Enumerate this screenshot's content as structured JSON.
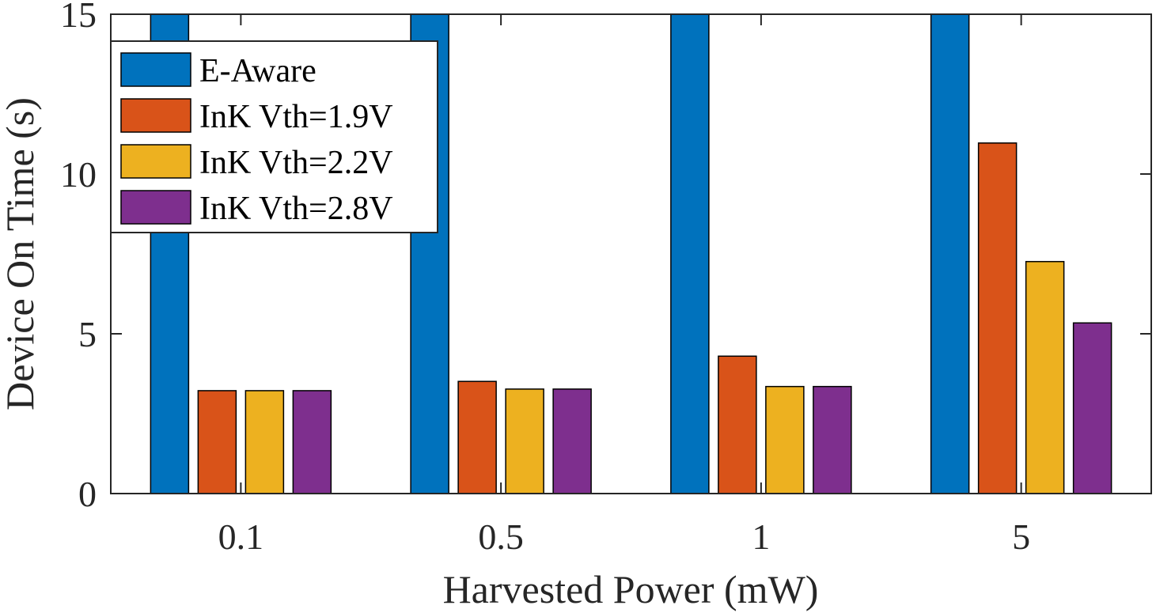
{
  "chart_data": {
    "type": "bar",
    "categories": [
      "0.1",
      "0.5",
      "1",
      "5"
    ],
    "series": [
      {
        "name": "E-Aware",
        "color": "#0072BD",
        "values": [
          15,
          15,
          15,
          15
        ]
      },
      {
        "name": "InK Vth=1.9V",
        "color": "#D95319",
        "values": [
          3.22,
          3.51,
          4.3,
          10.97
        ]
      },
      {
        "name": "InK Vth=2.2V",
        "color": "#EDB120",
        "values": [
          3.22,
          3.27,
          3.35,
          7.26
        ]
      },
      {
        "name": "InK Vth=2.8V",
        "color": "#7E2F8E",
        "values": [
          3.22,
          3.27,
          3.35,
          5.34
        ]
      }
    ],
    "xlabel": "Harvested Power (mW)",
    "ylabel": "Device On Time (s)",
    "ylim": [
      0,
      15
    ],
    "yticks": [
      "0",
      "5",
      "10",
      "15"
    ],
    "grid": false,
    "legend_position": "top-left"
  }
}
